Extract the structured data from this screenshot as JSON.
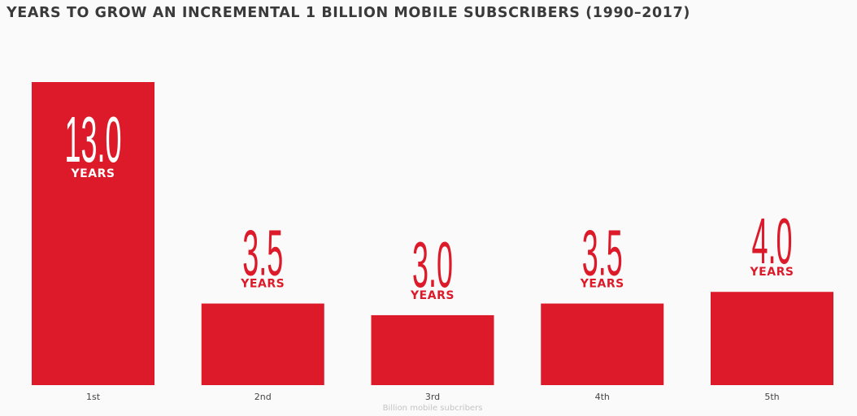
{
  "chart_data": {
    "type": "bar",
    "title": "YEARS TO GROW AN INCREMENTAL 1 BILLION MOBILE SUBSCRIBERS (1990–2017)",
    "categories": [
      "1st",
      "2nd",
      "3rd",
      "4th",
      "5th"
    ],
    "values": [
      13.0,
      3.5,
      3.0,
      3.5,
      4.0
    ],
    "value_labels": [
      "13.0",
      "3.5",
      "3.0",
      "3.5",
      "4.0"
    ],
    "unit_label": "YEARS",
    "xlabel": "Billion mobile subcribers",
    "ylabel": "",
    "ylim": [
      0,
      13.0
    ],
    "bar_color": "#dc1a29",
    "inside_label_color": "#ffffff",
    "title_color": "#3a3a3a",
    "tick_color": "#444444",
    "xlabel_color": "#c4c4c4"
  }
}
